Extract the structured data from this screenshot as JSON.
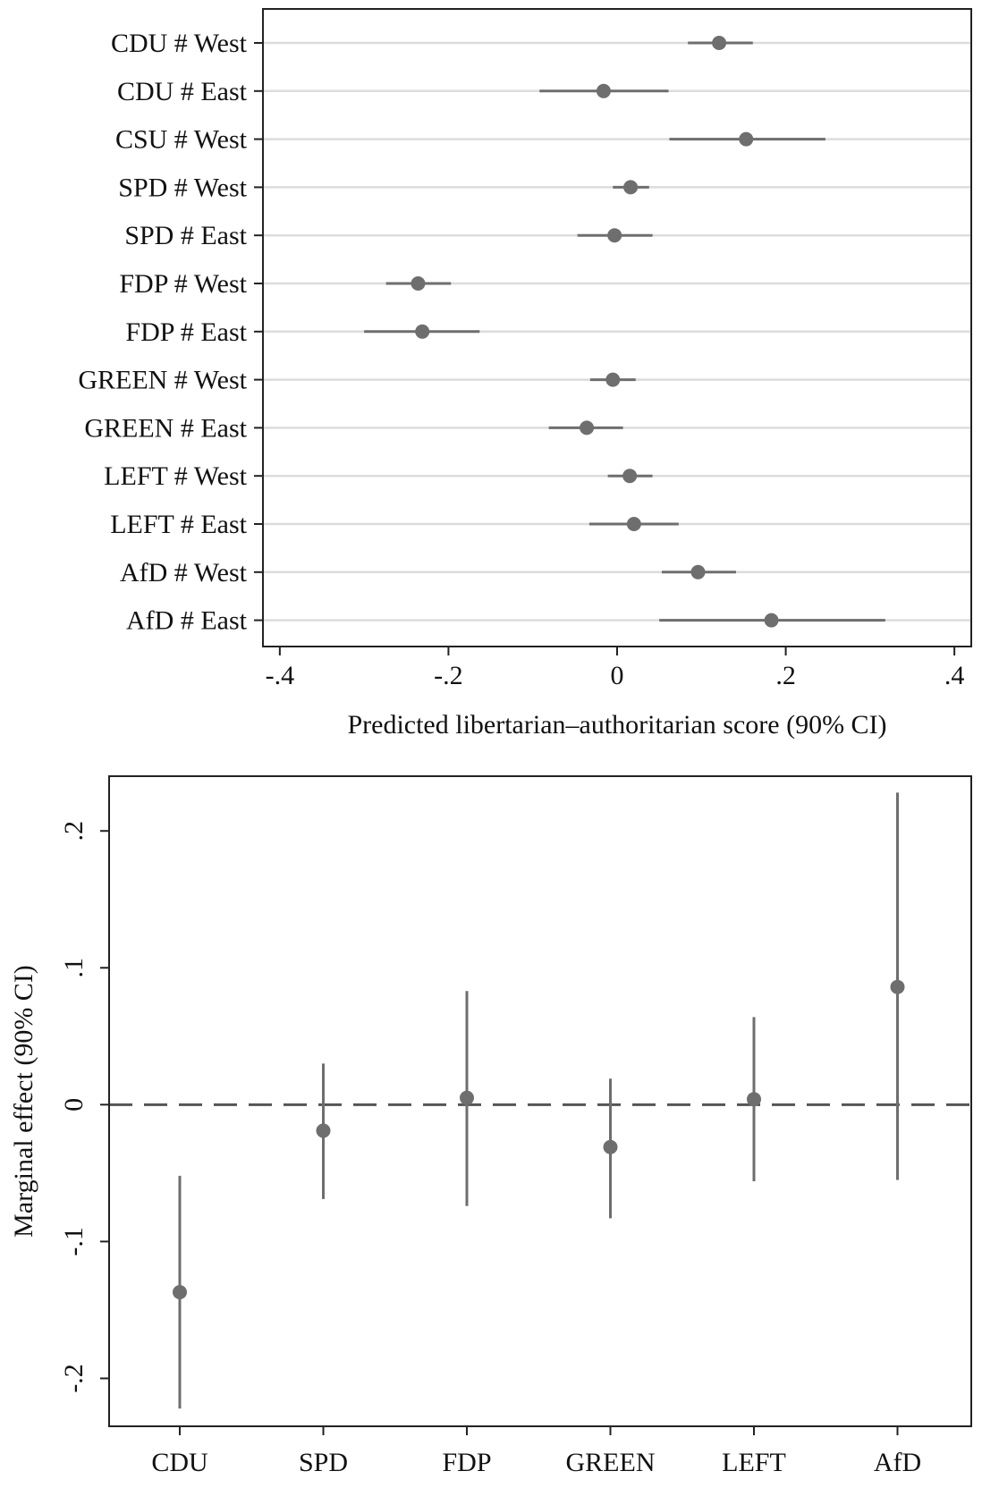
{
  "chart_data": [
    {
      "type": "scatter",
      "orientation": "horizontal",
      "xlabel": "Predicted libertarian–authoritarian score (90% CI)",
      "xlim": [
        -0.42,
        0.42
      ],
      "xticks": [
        -0.4,
        -0.2,
        0,
        0.2,
        0.4
      ],
      "xtick_labels": [
        "-.4",
        "-.2",
        "0",
        ".2",
        ".4"
      ],
      "grid": true,
      "categories": [
        "CDU # West",
        "CDU # East",
        "CSU # West",
        "SPD # West",
        "SPD # East",
        "FDP # West",
        "FDP # East",
        "GREEN # West",
        "GREEN # East",
        "LEFT # West",
        "LEFT # East",
        "AfD # West",
        "AfD # East"
      ],
      "values": [
        0.121,
        -0.016,
        0.153,
        0.016,
        -0.003,
        -0.236,
        -0.231,
        -0.005,
        -0.036,
        0.015,
        0.02,
        0.096,
        0.183
      ],
      "ci_low": [
        0.084,
        -0.092,
        0.062,
        -0.005,
        -0.047,
        -0.274,
        -0.3,
        -0.032,
        -0.081,
        -0.011,
        -0.033,
        0.053,
        0.05
      ],
      "ci_high": [
        0.161,
        0.061,
        0.247,
        0.038,
        0.042,
        -0.197,
        -0.163,
        0.022,
        0.007,
        0.042,
        0.073,
        0.141,
        0.318
      ]
    },
    {
      "type": "scatter",
      "orientation": "vertical",
      "ylabel": "Marginal effect (90% CI)",
      "ylim": [
        -0.235,
        0.24
      ],
      "yticks": [
        -0.2,
        -0.1,
        0,
        0.1,
        0.2
      ],
      "ytick_labels": [
        "-.2",
        "-.1",
        "0",
        ".1",
        ".2"
      ],
      "reference_line": 0,
      "grid": false,
      "categories": [
        "CDU",
        "SPD",
        "FDP",
        "GREEN",
        "LEFT",
        "AfD"
      ],
      "values": [
        -0.137,
        -0.019,
        0.005,
        -0.031,
        0.004,
        0.086
      ],
      "ci_low": [
        -0.222,
        -0.069,
        -0.074,
        -0.083,
        -0.056,
        -0.055
      ],
      "ci_high": [
        -0.052,
        0.03,
        0.083,
        0.019,
        0.064,
        0.228
      ]
    }
  ]
}
